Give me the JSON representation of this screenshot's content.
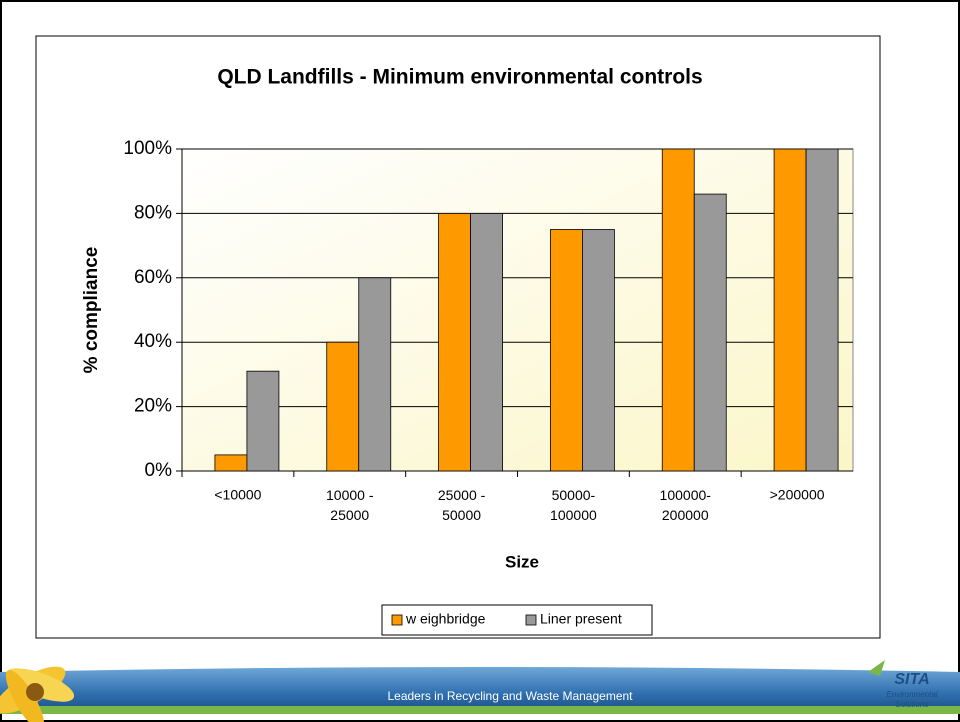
{
  "chart_data": {
    "type": "bar",
    "title": "QLD Landfills - Minimum environmental controls",
    "x_label": "Size",
    "y_label": "% compliance",
    "categories": [
      "<10000",
      "10000 -\n25000",
      "25000 -\n50000",
      "50000-\n100000",
      "100000-\n200000",
      ">200000"
    ],
    "series": [
      {
        "name": "w eighbridge",
        "color": "#ff9900",
        "values": [
          5,
          40,
          80,
          75,
          100,
          100
        ]
      },
      {
        "name": "Liner present",
        "color": "#999999",
        "values": [
          31,
          60,
          80,
          75,
          86,
          100
        ]
      }
    ],
    "ylim": [
      0,
      100
    ],
    "yticks": [
      {
        "value": 0,
        "label": "0%"
      },
      {
        "value": 20,
        "label": "20%"
      },
      {
        "value": 40,
        "label": "40%"
      },
      {
        "value": 60,
        "label": "60%"
      },
      {
        "value": 80,
        "label": "80%"
      },
      {
        "value": 100,
        "label": "100%"
      }
    ],
    "grid": true,
    "legend": "bottom"
  },
  "footer": {
    "tagline": "Leaders in Recycling and Waste Management",
    "logo": "SITA",
    "logo_sub": "Environmental\nSolutions"
  }
}
